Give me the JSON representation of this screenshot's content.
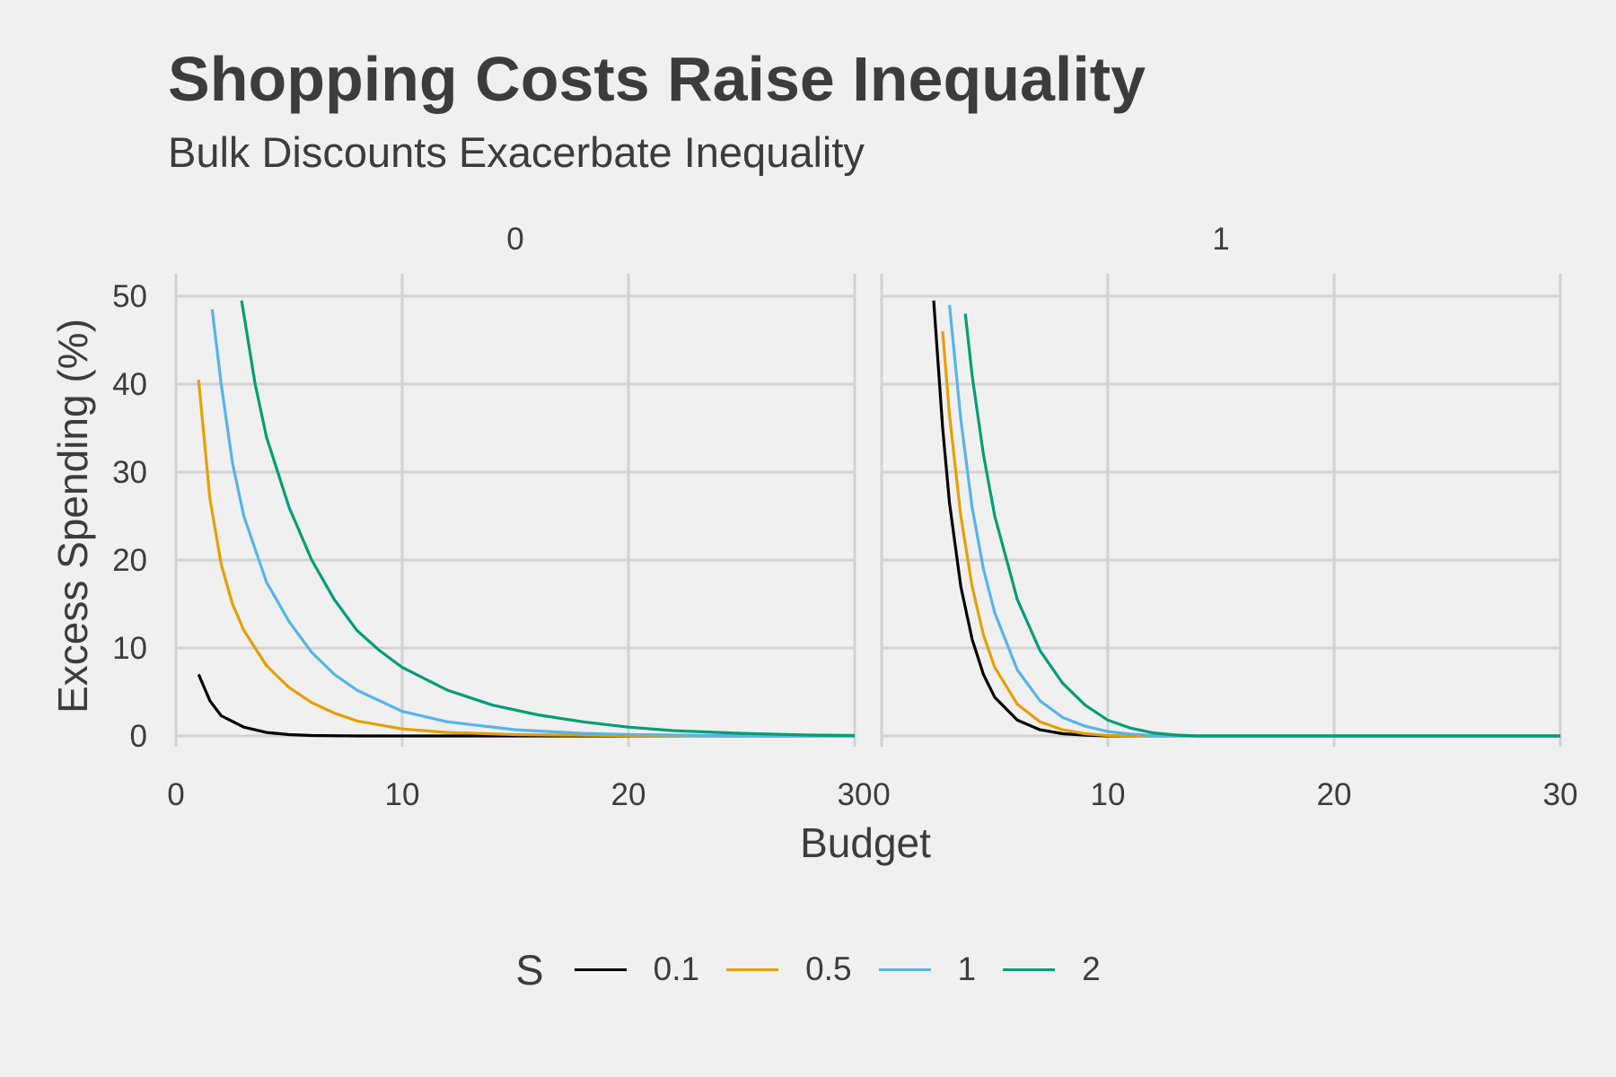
{
  "title": "Shopping Costs Raise Inequality",
  "subtitle": "Bulk Discounts Exacerbate Inequality",
  "chart_data": {
    "type": "line",
    "xlabel": "Budget",
    "ylabel": "Excess Spending (%)",
    "xlim": [
      0,
      30
    ],
    "ylim": [
      0,
      50
    ],
    "x_ticks": [
      "0",
      "10",
      "20",
      "30"
    ],
    "y_ticks": [
      "0",
      "10",
      "20",
      "30",
      "40",
      "50"
    ],
    "grid": true,
    "legend": {
      "title": "S",
      "placement": "bottom",
      "entries": [
        {
          "label": "0.1",
          "color": "#000000"
        },
        {
          "label": "0.5",
          "color": "#E69F00"
        },
        {
          "label": "1",
          "color": "#56B4E9"
        },
        {
          "label": "2",
          "color": "#009E73"
        }
      ]
    },
    "panels": [
      {
        "label": "0",
        "series": [
          {
            "name": "0.1",
            "color": "#000000",
            "points": [
              [
                1,
                7
              ],
              [
                1.5,
                4
              ],
              [
                2,
                2.3
              ],
              [
                3,
                1
              ],
              [
                4,
                0.4
              ],
              [
                5,
                0.15
              ],
              [
                6,
                0.05
              ],
              [
                8,
                0
              ],
              [
                12,
                0
              ],
              [
                16,
                0
              ],
              [
                20,
                0
              ],
              [
                25,
                0
              ],
              [
                30,
                0
              ]
            ]
          },
          {
            "name": "0.5",
            "color": "#E69F00",
            "points": [
              [
                1,
                40.5
              ],
              [
                1.5,
                27
              ],
              [
                2,
                19.5
              ],
              [
                2.5,
                15
              ],
              [
                3,
                12
              ],
              [
                4,
                8
              ],
              [
                5,
                5.5
              ],
              [
                6,
                3.8
              ],
              [
                7,
                2.6
              ],
              [
                8,
                1.7
              ],
              [
                10,
                0.8
              ],
              [
                12,
                0.4
              ],
              [
                15,
                0.15
              ],
              [
                20,
                0.03
              ],
              [
                25,
                0
              ],
              [
                30,
                0
              ]
            ]
          },
          {
            "name": "1",
            "color": "#56B4E9",
            "points": [
              [
                1.6,
                48.5
              ],
              [
                2,
                40
              ],
              [
                2.5,
                31
              ],
              [
                3,
                25
              ],
              [
                4,
                17.5
              ],
              [
                5,
                13
              ],
              [
                6,
                9.5
              ],
              [
                7,
                7
              ],
              [
                8,
                5.2
              ],
              [
                10,
                2.8
              ],
              [
                12,
                1.6
              ],
              [
                15,
                0.7
              ],
              [
                18,
                0.3
              ],
              [
                20,
                0.15
              ],
              [
                25,
                0.03
              ],
              [
                30,
                0
              ]
            ]
          },
          {
            "name": "2",
            "color": "#009E73",
            "points": [
              [
                2.9,
                49.5
              ],
              [
                3.5,
                40
              ],
              [
                4,
                34
              ],
              [
                5,
                26
              ],
              [
                6,
                20
              ],
              [
                7,
                15.5
              ],
              [
                8,
                12
              ],
              [
                9,
                9.7
              ],
              [
                10,
                7.8
              ],
              [
                12,
                5.2
              ],
              [
                14,
                3.5
              ],
              [
                16,
                2.4
              ],
              [
                18,
                1.6
              ],
              [
                20,
                1
              ],
              [
                22,
                0.6
              ],
              [
                25,
                0.3
              ],
              [
                28,
                0.1
              ],
              [
                30,
                0.05
              ]
            ]
          }
        ]
      },
      {
        "label": "1",
        "series": [
          {
            "name": "0.1",
            "color": "#000000",
            "points": [
              [
                2.3,
                49.5
              ],
              [
                2.7,
                35
              ],
              [
                3,
                26.5
              ],
              [
                3.5,
                17
              ],
              [
                4,
                11
              ],
              [
                4.5,
                7
              ],
              [
                5,
                4.4
              ],
              [
                6,
                1.8
              ],
              [
                7,
                0.7
              ],
              [
                8,
                0.25
              ],
              [
                9,
                0.08
              ],
              [
                10,
                0
              ],
              [
                15,
                0
              ],
              [
                20,
                0
              ],
              [
                25,
                0
              ],
              [
                30,
                0
              ]
            ]
          },
          {
            "name": "0.5",
            "color": "#E69F00",
            "points": [
              [
                2.7,
                46
              ],
              [
                3,
                36.5
              ],
              [
                3.5,
                25
              ],
              [
                4,
                17
              ],
              [
                4.5,
                11.5
              ],
              [
                5,
                7.8
              ],
              [
                6,
                3.6
              ],
              [
                7,
                1.6
              ],
              [
                8,
                0.7
              ],
              [
                9,
                0.25
              ],
              [
                10,
                0.05
              ],
              [
                12,
                0
              ],
              [
                20,
                0
              ],
              [
                30,
                0
              ]
            ]
          },
          {
            "name": "1",
            "color": "#56B4E9",
            "points": [
              [
                3,
                49
              ],
              [
                3.5,
                36
              ],
              [
                4,
                26
              ],
              [
                4.5,
                19
              ],
              [
                5,
                14
              ],
              [
                6,
                7.5
              ],
              [
                7,
                4
              ],
              [
                8,
                2.1
              ],
              [
                9,
                1.1
              ],
              [
                10,
                0.5
              ],
              [
                11,
                0.2
              ],
              [
                12,
                0.05
              ],
              [
                14,
                0
              ],
              [
                20,
                0
              ],
              [
                30,
                0
              ]
            ]
          },
          {
            "name": "2",
            "color": "#009E73",
            "points": [
              [
                3.7,
                48
              ],
              [
                4,
                41
              ],
              [
                4.5,
                32
              ],
              [
                5,
                25
              ],
              [
                6,
                15.5
              ],
              [
                7,
                9.7
              ],
              [
                8,
                6
              ],
              [
                9,
                3.5
              ],
              [
                10,
                1.8
              ],
              [
                11,
                0.9
              ],
              [
                12,
                0.35
              ],
              [
                13,
                0.1
              ],
              [
                14,
                0
              ],
              [
                20,
                0
              ],
              [
                30,
                0
              ]
            ]
          }
        ]
      }
    ]
  }
}
